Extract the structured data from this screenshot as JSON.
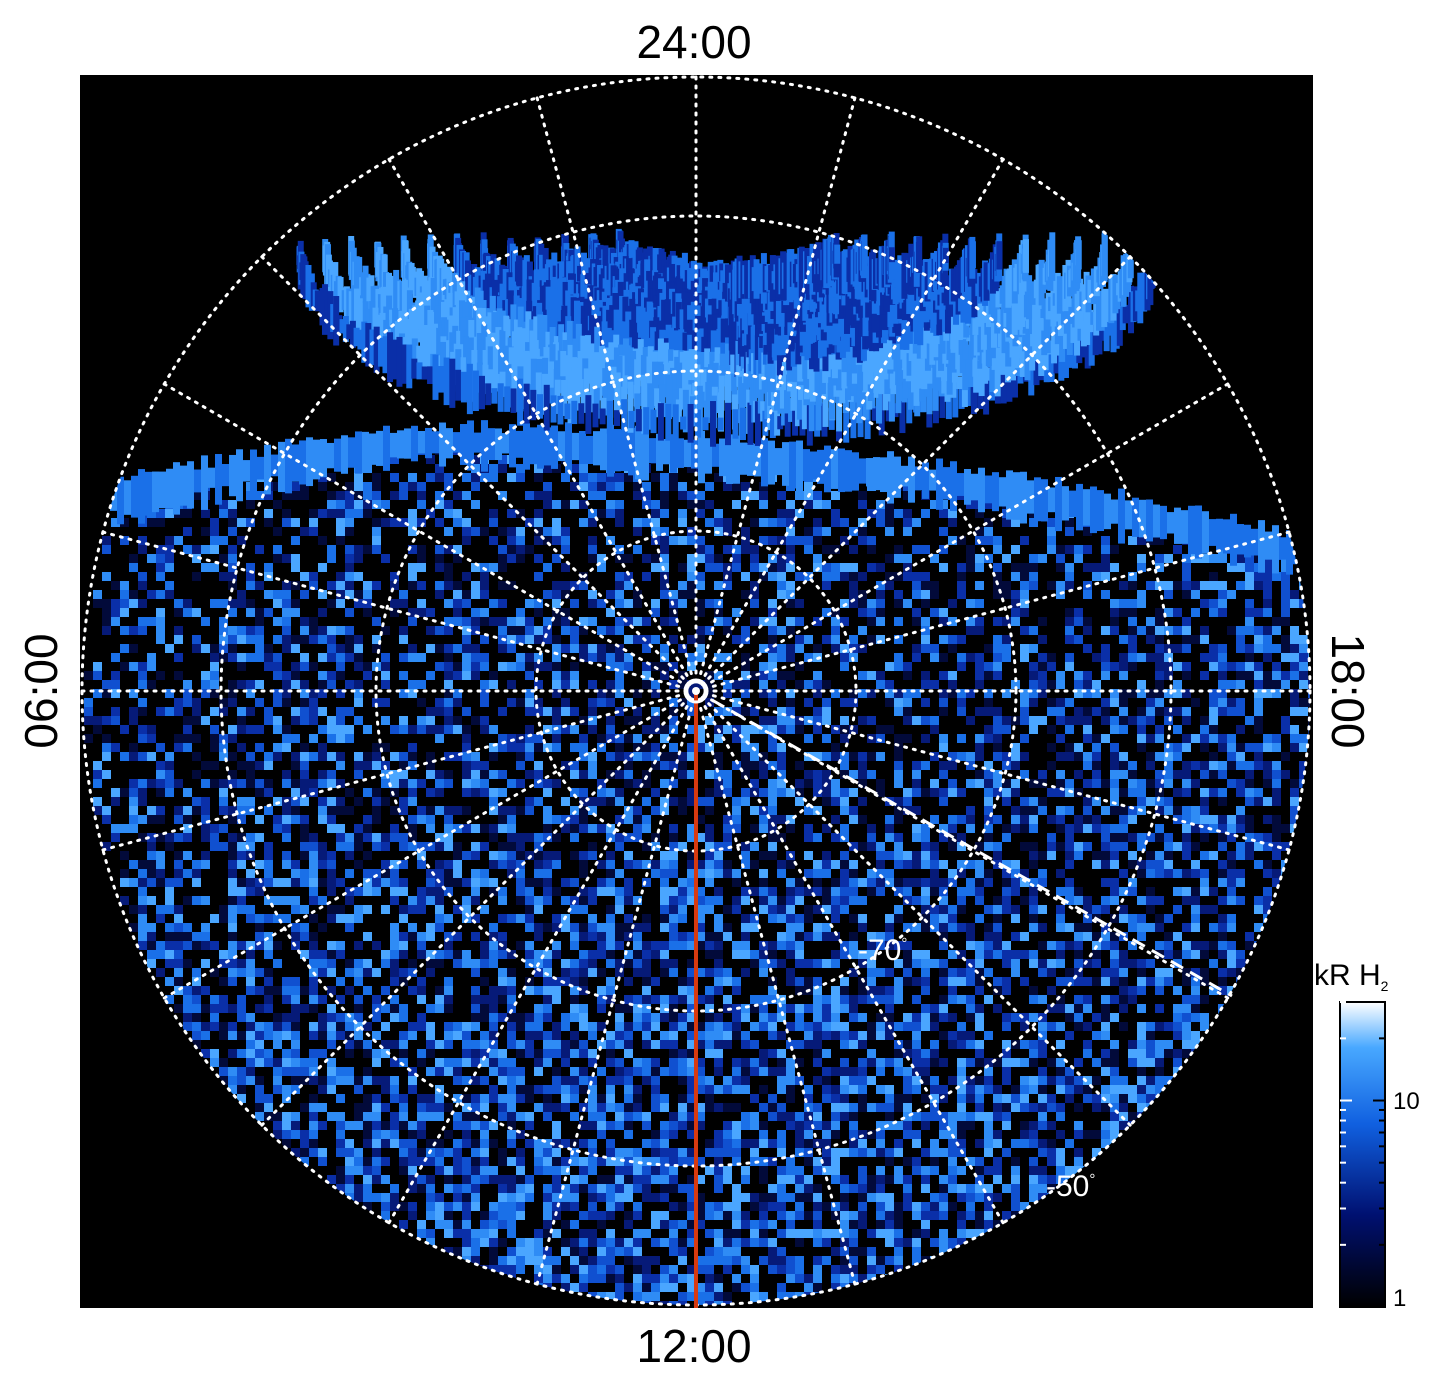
{
  "projection": {
    "time_labels": {
      "top": "24:00",
      "bottom": "12:00",
      "left": "06:00",
      "right": "18:00"
    },
    "latitude_labels": [
      {
        "value": "-70",
        "unit": "°"
      },
      {
        "value": "-50",
        "unit": "°"
      }
    ],
    "colors": {
      "background": "#000000",
      "grid": "#ffffff",
      "noon_line": "#d83a10",
      "emission_dim": "#0a1a6a",
      "emission_mid": "#1060d8",
      "emission_bright": "#40a8ff"
    }
  },
  "colorbar": {
    "title_main": "kR H",
    "title_sub": "2",
    "tick_labels": [
      "10",
      "1"
    ],
    "scale": "log",
    "colors": [
      "#000000",
      "#001070",
      "#1060e0",
      "#48a8ff",
      "#ffffff"
    ]
  }
}
